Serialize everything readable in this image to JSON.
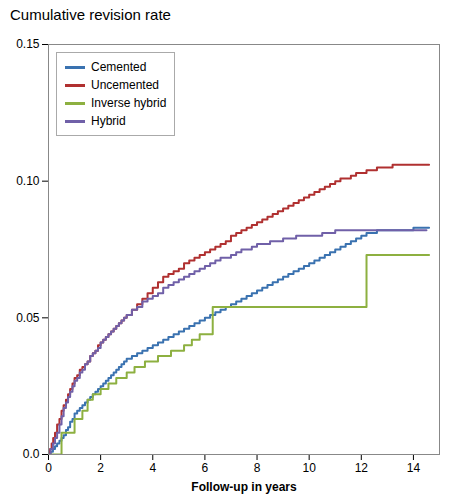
{
  "chart_data": {
    "type": "line",
    "title": "Cumulative revision rate",
    "xlabel": "Follow-up in years",
    "xlim": [
      0,
      15
    ],
    "ylim": [
      0,
      0.15
    ],
    "xticks": [
      0,
      2,
      4,
      6,
      8,
      10,
      12,
      14
    ],
    "yticks": [
      {
        "value": 0,
        "label": "0.0"
      },
      0.05,
      {
        "value": 0.1,
        "label": "0.10"
      },
      0.15
    ],
    "legend": "upper left",
    "series": [
      {
        "name": "Cemented",
        "color": "#3A72B0",
        "type": "step",
        "x": [
          0,
          0.08,
          0.17,
          0.25,
          0.33,
          0.42,
          0.5,
          0.58,
          0.67,
          0.75,
          0.83,
          0.92,
          1.0,
          1.1,
          1.2,
          1.3,
          1.4,
          1.5,
          1.6,
          1.7,
          1.8,
          1.9,
          2.0,
          2.1,
          2.2,
          2.3,
          2.4,
          2.5,
          2.6,
          2.7,
          2.8,
          2.9,
          3.0,
          3.2,
          3.4,
          3.6,
          3.8,
          4.0,
          4.2,
          4.4,
          4.6,
          4.8,
          5.0,
          5.2,
          5.4,
          5.6,
          5.8,
          6.0,
          6.2,
          6.4,
          6.6,
          6.8,
          7.0,
          7.2,
          7.4,
          7.6,
          7.8,
          8.0,
          8.2,
          8.4,
          8.6,
          8.8,
          9.0,
          9.2,
          9.4,
          9.6,
          9.8,
          10.0,
          10.2,
          10.4,
          10.6,
          10.8,
          11.0,
          11.2,
          11.4,
          11.6,
          11.8,
          12.0,
          12.2,
          12.4,
          12.6,
          12.8,
          13.0,
          13.2,
          13.4,
          13.6,
          13.8,
          14.0,
          14.2,
          14.4,
          14.6
        ],
        "values": [
          0,
          0.001,
          0.002,
          0.003,
          0.004,
          0.005,
          0.006,
          0.007,
          0.009,
          0.01,
          0.012,
          0.013,
          0.015,
          0.016,
          0.017,
          0.018,
          0.019,
          0.02,
          0.021,
          0.022,
          0.023,
          0.024,
          0.025,
          0.026,
          0.027,
          0.028,
          0.029,
          0.03,
          0.031,
          0.032,
          0.033,
          0.034,
          0.035,
          0.036,
          0.037,
          0.038,
          0.039,
          0.04,
          0.041,
          0.042,
          0.043,
          0.044,
          0.045,
          0.046,
          0.047,
          0.048,
          0.049,
          0.05,
          0.051,
          0.052,
          0.053,
          0.054,
          0.055,
          0.056,
          0.057,
          0.058,
          0.059,
          0.06,
          0.061,
          0.062,
          0.063,
          0.064,
          0.065,
          0.066,
          0.067,
          0.068,
          0.069,
          0.07,
          0.071,
          0.072,
          0.073,
          0.074,
          0.075,
          0.076,
          0.077,
          0.078,
          0.079,
          0.08,
          0.081,
          0.081,
          0.082,
          0.082,
          0.082,
          0.082,
          0.082,
          0.082,
          0.082,
          0.083,
          0.083,
          0.083,
          0.083
        ]
      },
      {
        "name": "Uncemented",
        "color": "#B03030",
        "type": "step",
        "x": [
          0,
          0.06,
          0.12,
          0.18,
          0.25,
          0.33,
          0.42,
          0.5,
          0.58,
          0.67,
          0.75,
          0.83,
          0.92,
          1.0,
          1.1,
          1.2,
          1.3,
          1.4,
          1.5,
          1.6,
          1.7,
          1.8,
          1.9,
          2.0,
          2.1,
          2.2,
          2.3,
          2.4,
          2.5,
          2.6,
          2.7,
          2.8,
          2.9,
          3.0,
          3.2,
          3.4,
          3.6,
          3.8,
          4.0,
          4.2,
          4.4,
          4.6,
          4.8,
          5.0,
          5.2,
          5.4,
          5.6,
          5.8,
          6.0,
          6.2,
          6.4,
          6.6,
          6.8,
          7.0,
          7.2,
          7.4,
          7.6,
          7.8,
          8.0,
          8.2,
          8.4,
          8.6,
          8.8,
          9.0,
          9.2,
          9.4,
          9.6,
          9.8,
          10.0,
          10.2,
          10.4,
          10.6,
          10.8,
          11.0,
          11.2,
          11.4,
          11.6,
          11.8,
          12.0,
          12.2,
          12.4,
          12.6,
          12.8,
          13.0,
          13.2,
          13.4,
          13.6,
          13.8,
          14.0,
          14.2,
          14.4,
          14.6
        ],
        "values": [
          0,
          0.002,
          0.004,
          0.006,
          0.008,
          0.011,
          0.013,
          0.016,
          0.018,
          0.02,
          0.022,
          0.024,
          0.026,
          0.028,
          0.029,
          0.031,
          0.032,
          0.033,
          0.034,
          0.036,
          0.037,
          0.038,
          0.04,
          0.041,
          0.042,
          0.043,
          0.044,
          0.045,
          0.046,
          0.047,
          0.048,
          0.049,
          0.05,
          0.051,
          0.053,
          0.055,
          0.057,
          0.059,
          0.061,
          0.063,
          0.065,
          0.066,
          0.067,
          0.068,
          0.07,
          0.071,
          0.072,
          0.073,
          0.074,
          0.075,
          0.076,
          0.077,
          0.078,
          0.08,
          0.081,
          0.082,
          0.083,
          0.084,
          0.085,
          0.086,
          0.087,
          0.088,
          0.089,
          0.09,
          0.091,
          0.092,
          0.093,
          0.094,
          0.095,
          0.096,
          0.097,
          0.098,
          0.099,
          0.1,
          0.101,
          0.101,
          0.102,
          0.103,
          0.103,
          0.104,
          0.104,
          0.105,
          0.105,
          0.105,
          0.106,
          0.106,
          0.106,
          0.106,
          0.106,
          0.106,
          0.106,
          0.106
        ]
      },
      {
        "name": "Inverse hybrid",
        "color": "#8DB040",
        "type": "line",
        "x": [
          0,
          0.5,
          0.5,
          1.0,
          1.0,
          1.3,
          1.3,
          1.5,
          1.5,
          1.7,
          1.7,
          2.0,
          2.0,
          2.3,
          2.3,
          2.6,
          2.6,
          3.0,
          3.0,
          3.3,
          3.3,
          3.7,
          3.7,
          4.2,
          4.2,
          4.7,
          4.7,
          5.2,
          5.2,
          5.5,
          5.5,
          5.8,
          5.8,
          6.3,
          6.3,
          12.2,
          12.2,
          14.6
        ],
        "values": [
          0,
          0,
          0.008,
          0.008,
          0.013,
          0.013,
          0.016,
          0.016,
          0.02,
          0.02,
          0.022,
          0.022,
          0.024,
          0.024,
          0.026,
          0.026,
          0.028,
          0.028,
          0.03,
          0.03,
          0.032,
          0.032,
          0.034,
          0.034,
          0.036,
          0.036,
          0.038,
          0.038,
          0.04,
          0.04,
          0.042,
          0.042,
          0.044,
          0.044,
          0.054,
          0.054,
          0.073,
          0.073
        ]
      },
      {
        "name": "Hybrid",
        "color": "#7060A8",
        "type": "step",
        "x": [
          0,
          0.08,
          0.17,
          0.25,
          0.33,
          0.42,
          0.5,
          0.58,
          0.67,
          0.75,
          0.83,
          0.92,
          1.0,
          1.1,
          1.2,
          1.3,
          1.4,
          1.5,
          1.6,
          1.7,
          1.8,
          1.9,
          2.0,
          2.1,
          2.2,
          2.3,
          2.4,
          2.5,
          2.6,
          2.7,
          2.8,
          2.9,
          3.0,
          3.2,
          3.4,
          3.6,
          3.8,
          4.0,
          4.2,
          4.4,
          4.6,
          4.8,
          5.0,
          5.2,
          5.4,
          5.6,
          5.8,
          6.0,
          6.2,
          6.4,
          6.6,
          6.8,
          7.0,
          7.2,
          7.4,
          7.6,
          7.8,
          8.0,
          8.5,
          9.0,
          9.5,
          10.0,
          10.5,
          11.0,
          11.5,
          12.0,
          12.5,
          13.0,
          13.5,
          14.0,
          14.5
        ],
        "values": [
          0,
          0.002,
          0.004,
          0.006,
          0.008,
          0.011,
          0.014,
          0.017,
          0.019,
          0.021,
          0.023,
          0.025,
          0.027,
          0.028,
          0.03,
          0.031,
          0.033,
          0.034,
          0.036,
          0.037,
          0.038,
          0.039,
          0.041,
          0.042,
          0.043,
          0.044,
          0.045,
          0.046,
          0.047,
          0.048,
          0.049,
          0.05,
          0.051,
          0.053,
          0.054,
          0.056,
          0.057,
          0.058,
          0.059,
          0.061,
          0.062,
          0.063,
          0.064,
          0.065,
          0.066,
          0.067,
          0.068,
          0.069,
          0.07,
          0.071,
          0.072,
          0.072,
          0.073,
          0.074,
          0.075,
          0.075,
          0.076,
          0.077,
          0.078,
          0.079,
          0.08,
          0.08,
          0.081,
          0.082,
          0.082,
          0.082,
          0.082,
          0.082,
          0.082,
          0.082,
          0.082
        ]
      }
    ]
  }
}
